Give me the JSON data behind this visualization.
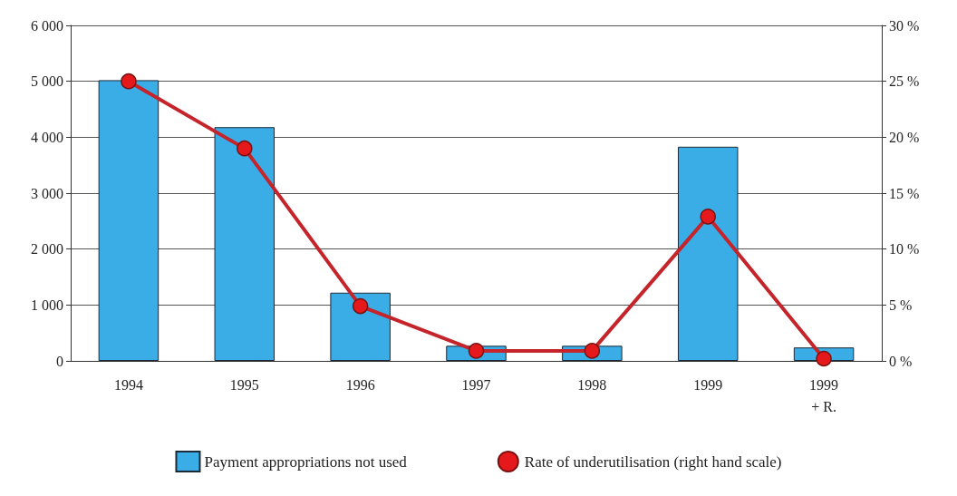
{
  "chart_data": {
    "type": "bar",
    "categories": [
      "1994",
      "1995",
      "1996",
      "1997",
      "1998",
      "1999",
      "1999\n+ R."
    ],
    "series": [
      {
        "name": "Payment appropriations not used",
        "color": "#3aace6",
        "values": [
          5020,
          4180,
          1220,
          270,
          270,
          3830,
          240
        ]
      },
      {
        "name": "Rate of underutilisation (right hand scale)",
        "type": "line",
        "axis": "y2",
        "color": "#c4242a",
        "values": [
          25,
          19,
          4.9,
          0.9,
          0.9,
          12.9,
          0.2
        ]
      }
    ],
    "ylim": [
      0,
      6000
    ],
    "yticks": [
      0,
      {
        "value": 1000,
        "label": "1 000"
      },
      {
        "value": 2000,
        "label": "2 000"
      },
      {
        "value": 3000,
        "label": "3 000"
      },
      {
        "value": 4000,
        "label": "4 000"
      },
      {
        "value": 5000,
        "label": "5 000"
      },
      {
        "value": 6000,
        "label": "6 000"
      }
    ],
    "y2lim": [
      0,
      30
    ],
    "y2ticks": [
      {
        "value": 0,
        "label": "0 %"
      },
      {
        "value": 5,
        "label": "5 %"
      },
      {
        "value": 10,
        "label": "10 %"
      },
      {
        "value": 15,
        "label": "15 %"
      },
      {
        "value": 20,
        "label": "20 %"
      },
      {
        "value": 25,
        "label": "25 %"
      },
      {
        "value": 30,
        "label": "30 %"
      }
    ],
    "grid": "y",
    "legend": "bottom",
    "marker": "circle",
    "line_style": "solid"
  }
}
